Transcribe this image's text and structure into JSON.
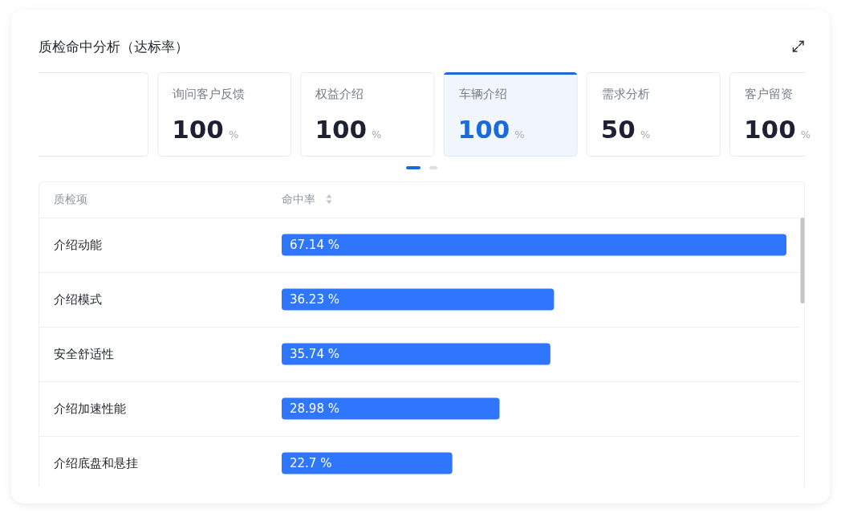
{
  "chart_data": [
    {
      "type": "other",
      "title": "质检命中分析（达标率）",
      "categories": [
        null,
        "询问客户反馈",
        "权益介绍",
        "车辆介绍",
        "需求分析",
        "客户留资"
      ],
      "values": [
        null,
        100,
        100,
        100,
        50,
        100
      ],
      "value_labels": [
        null,
        "100 %",
        "100 %",
        "100 %",
        "50 %",
        "100 %"
      ],
      "colors": [
        "#1e2033",
        "#1e2033",
        "#1e2033",
        "#1a6bd9",
        "#1e2033",
        "#1e2033"
      ]
    },
    {
      "type": "bar",
      "orientation": "horizontal",
      "ylabel": "质检项",
      "xlabel": "命中率",
      "categories": [
        "介绍动能",
        "介绍模式",
        "安全舒适性",
        "介绍加速性能",
        "介绍底盘和悬挂"
      ],
      "values": [
        67.14,
        36.23,
        35.74,
        28.98,
        22.7
      ],
      "value_labels": [
        "67.14 %",
        "36.23 %",
        "35.74 %",
        "28.98 %",
        "22.7 %"
      ],
      "color": "#2f76ff"
    }
  ]
}
